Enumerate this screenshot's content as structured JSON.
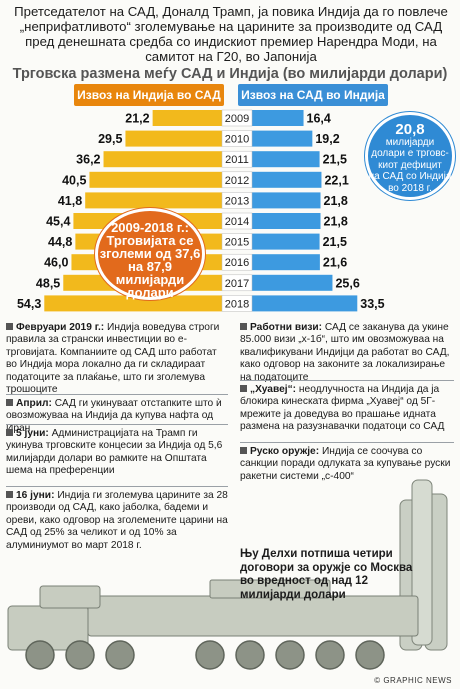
{
  "intro": "Претседателот на САД, Доналд Трамп, ја повика Индија да го повлече „неприфатливото“ зголемување на царините за производите од САД пред денешната средба со индискиот премиер Нарендра Моди, на самитот на Г20, во Јапонија",
  "chart_title": "Трговска размена меѓу САД и Индија (во милијарди долари)",
  "chart_data": {
    "type": "bar",
    "title": "Трговска размена меѓу САД и Индија (во милијарди долари)",
    "categories": [
      "2009",
      "2010",
      "2011",
      "2012",
      "2013",
      "2014",
      "2015",
      "2016",
      "2017",
      "2018"
    ],
    "series": [
      {
        "name": "Извоз на Индија во САД",
        "values": [
          21.2,
          29.5,
          36.2,
          40.5,
          41.8,
          45.4,
          44.8,
          46.0,
          48.5,
          54.3
        ],
        "labels": [
          "21,2",
          "29,5",
          "36,2",
          "40,5",
          "41,8",
          "45,4",
          "44,8",
          "46,0",
          "48,5",
          "54,3"
        ],
        "color": "#f2b91c"
      },
      {
        "name": "Извоз на САД во Индија",
        "values": [
          16.4,
          19.2,
          21.5,
          22.1,
          21.8,
          21.8,
          21.5,
          21.6,
          25.6,
          33.5
        ],
        "labels": [
          "16,4",
          "19,2",
          "21,5",
          "22,1",
          "21,8",
          "21,8",
          "21,5",
          "21,6",
          "25,6",
          "33,5"
        ],
        "color": "#3d9ae0"
      }
    ],
    "colors": {
      "left_header": "#e8860d",
      "right_header": "#3a8fd6",
      "left_bar": "#f2b91c",
      "right_bar": "#3d9ae0",
      "year_box": "#ffffff"
    }
  },
  "callout_orange": {
    "l1": "2009-2018 г.:",
    "l2": "Трговијата се",
    "l3": "зголеми од 37,6",
    "l4": "на 87,9",
    "l5": "милијарди",
    "l6": "долари"
  },
  "callout_blue": {
    "num": "20,8",
    "l1": "милијарди",
    "l2": "долари е трговс-",
    "l3": "киот дефицит",
    "l4": "на САД со Индија",
    "l5": "во 2018 г."
  },
  "news_left": [
    {
      "head": "Февруари 2019 г.:",
      "text": "Индија воведува строги правила за странски инвестиции во е-трговијата. Компаниите од САД што работат во Индија мора локално да ги складираат податоците за плаќање, што ги зголемува трошоците"
    },
    {
      "head": "Април:",
      "text": "САД ги укинуваат отстапките што ѝ овозможуваа на Индија да купува нафта од Иран"
    },
    {
      "head": "5 јуни:",
      "text": "Администрацијата на Трамп ги укинува трговските концесии за Индија од 5,6 милијарди долари во рамките на Општата шема на преференции"
    },
    {
      "head": "16 јуни:",
      "text": "Индија ги зголемува царините за 28 производи од САД, како јаболка, бадеми и ореви, како одговор на зголемените царини на САД од 25% за челикот и од 10% за алуминиумот во март 2018 г."
    }
  ],
  "news_right": [
    {
      "head": "Работни визи:",
      "text": "САД се заканува да укине 85.000 визи „х-1б“, што им овозможуваа на квалификувани Индијци да работат во САД, како одговор на законите за локализирање на податоците"
    },
    {
      "head": "„Хуавеј“:",
      "text": "неодлучноста на Индија да ја блокира кинеската фирма „Хуавеј“ од 5Г-мрежите ја доведува во прашање идната размена на разузнавачки податоци со САД"
    },
    {
      "head": "Руско оружје:",
      "text": "Индија се соочува со санкции поради одлуката за купување руски ракетни системи „с-400“"
    }
  ],
  "caption": "Њу Делхи потпиша четири договори за оружје со Москва во вредност од над 12 милијарди долари",
  "credit": "© GRAPHIC NEWS"
}
